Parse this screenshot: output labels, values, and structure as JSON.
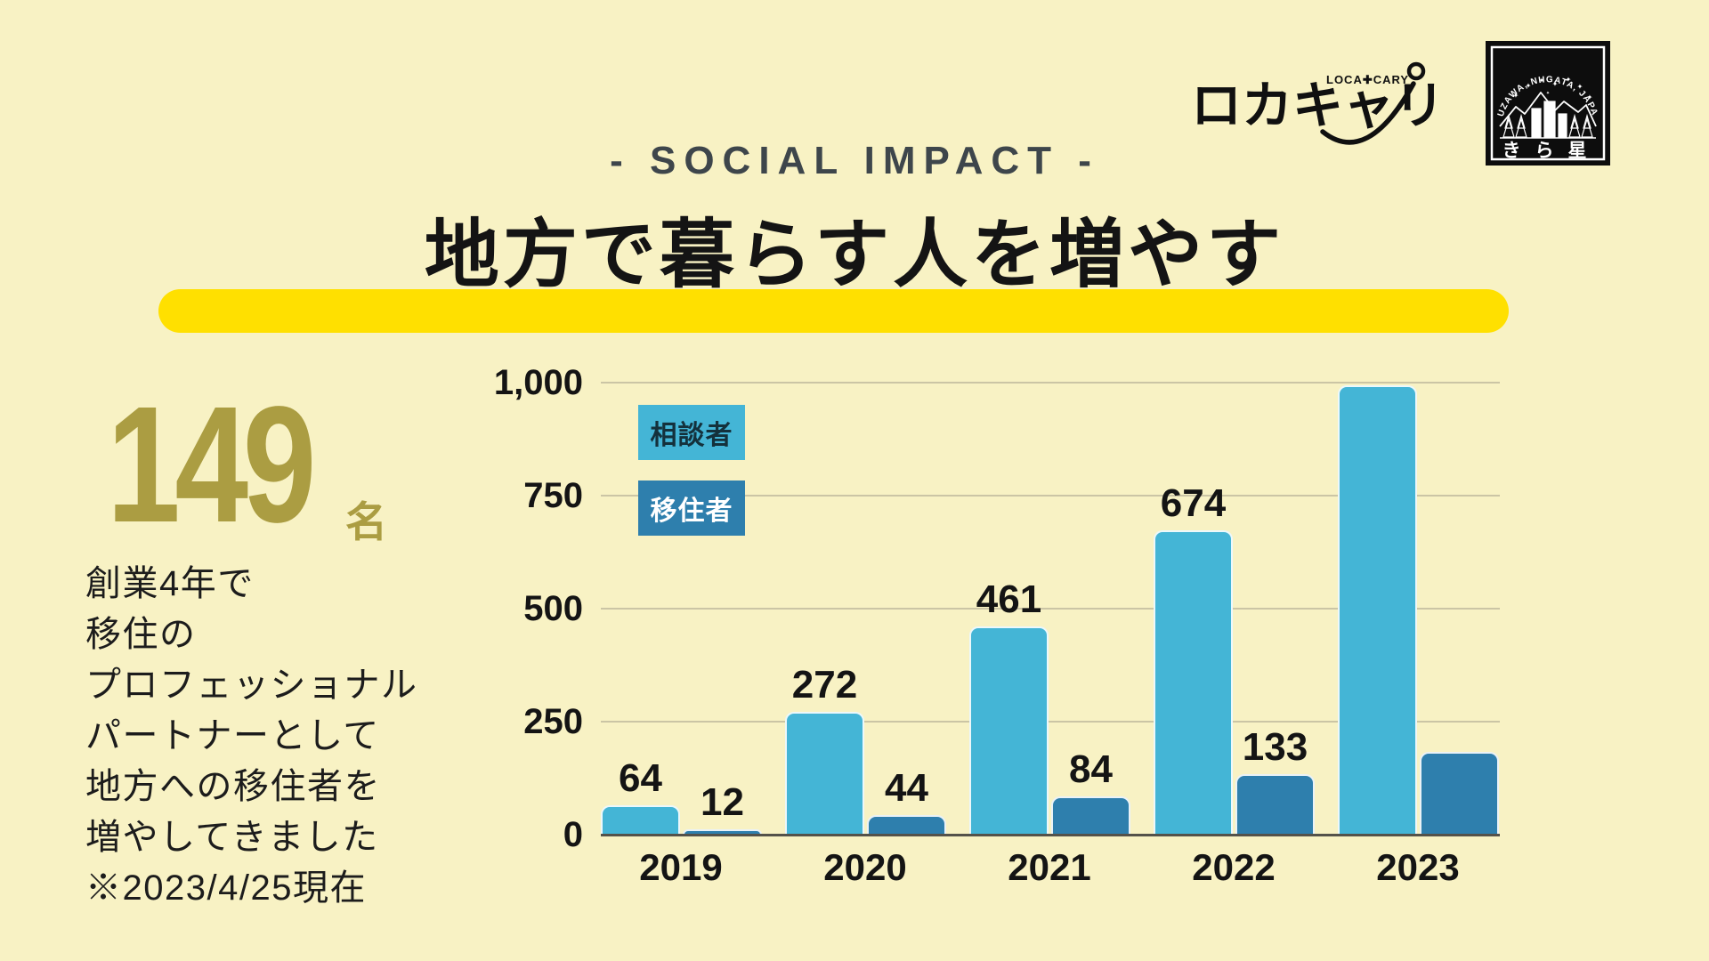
{
  "page": {
    "bg": "#F8F2C4"
  },
  "header": {
    "eyebrow": "- SOCIAL IMPACT -",
    "title": "地方で暮らす人を増やす",
    "highlight_color": "#FFE000"
  },
  "logos": {
    "locacary": {
      "text": "ロカキャリ",
      "sub": "LOCA✚CARY"
    },
    "kiraboshi": {
      "arc_text": "YUZAWA, NIIGATA, JAPAN",
      "name": "きら星"
    }
  },
  "stat": {
    "number": "149",
    "unit": "名",
    "color": "#AB9D42",
    "description_lines": [
      "創業4年で",
      "移住の",
      "プロフェッショナル",
      "パートナーとして",
      "地方への移住者を",
      "増やしてきました",
      "※2023/4/25現在"
    ]
  },
  "chart_data": {
    "type": "bar",
    "title": "",
    "categories": [
      "2019",
      "2020",
      "2021",
      "2022",
      "2023"
    ],
    "series": [
      {
        "key": "consultants",
        "name": "相談者",
        "color": "#44B5D6",
        "label_color": "#14313C",
        "values": [
          64,
          272,
          461,
          674,
          995
        ],
        "labels": [
          "64",
          "272",
          "461",
          "674",
          ""
        ]
      },
      {
        "key": "migrants",
        "name": "移住者",
        "color": "#2E7FAD",
        "label_color": "#FFFFFF",
        "values": [
          12,
          44,
          84,
          133,
          183
        ],
        "labels": [
          "12",
          "44",
          "84",
          "133",
          ""
        ]
      }
    ],
    "ylim": [
      0,
      1000
    ],
    "yticks": [
      "1,000",
      "750",
      "500",
      "250",
      "0"
    ],
    "ytick_values": [
      1000,
      750,
      500,
      250,
      0
    ],
    "grid": true,
    "legend_position": "inside-top-left"
  }
}
